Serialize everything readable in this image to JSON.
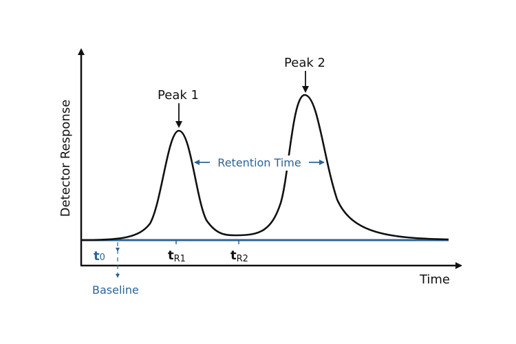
{
  "diagram": {
    "y_axis_label": "Detector Response",
    "x_axis_label": "Time",
    "peak1_label": "Peak 1",
    "peak2_label": "Peak 2",
    "retention_label": "Retention Time",
    "baseline_label": "Baseline",
    "t0_main": "t",
    "t0_sub": "0",
    "tR1_main": "t",
    "tR1_sub": "R1",
    "tR2_main": "t",
    "tR2_sub": "R2"
  },
  "colors": {
    "accent": "#2a6496",
    "ink": "#111111"
  }
}
